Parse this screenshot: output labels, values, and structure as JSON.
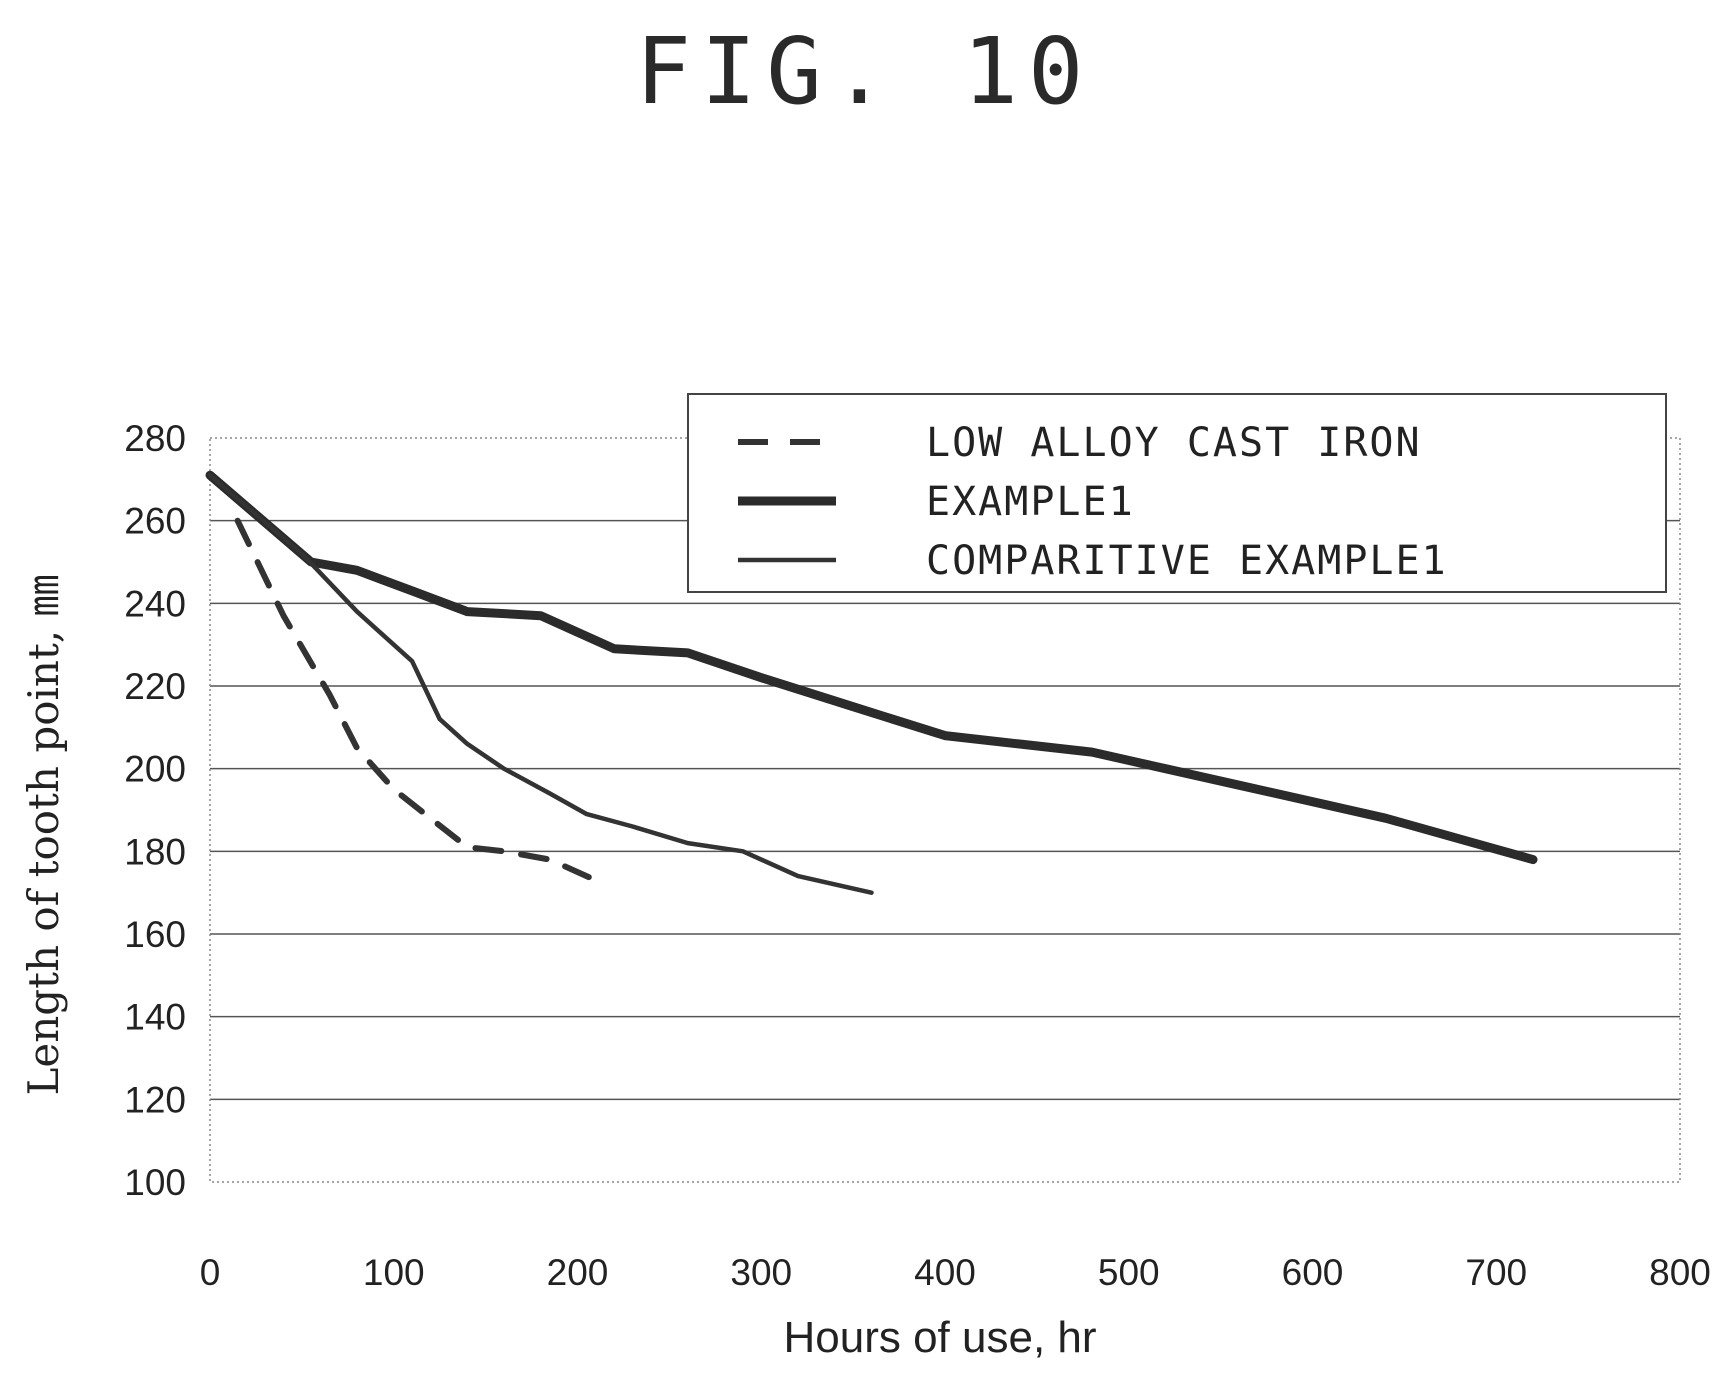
{
  "figure_title": "FIG. 10",
  "chart_data": {
    "type": "line",
    "xlabel": "Hours of use, hr",
    "ylabel": "Length of tooth point, ㎜",
    "xlim": [
      0,
      800
    ],
    "ylim": [
      100,
      280
    ],
    "xticks": [
      0,
      100,
      200,
      300,
      400,
      500,
      600,
      700,
      800
    ],
    "yticks": [
      100,
      120,
      140,
      160,
      180,
      200,
      220,
      240,
      260,
      280
    ],
    "grid": "horizontal",
    "legend_position": "top-right",
    "series": [
      {
        "name": "LOW ALLOY CAST IRON",
        "style": "dashed",
        "color": "#333333",
        "x": [
          15,
          40,
          65,
          80,
          100,
          120,
          140,
          160,
          185,
          210
        ],
        "y": [
          260,
          237,
          218,
          205,
          195,
          188,
          181,
          180,
          178,
          173
        ]
      },
      {
        "name": "EXAMPLE1",
        "style": "thick",
        "color": "#2b2b2b",
        "x": [
          0,
          55,
          80,
          110,
          140,
          180,
          220,
          260,
          300,
          350,
          400,
          440,
          480,
          520,
          560,
          600,
          640,
          680,
          720
        ],
        "y": [
          271,
          250,
          248,
          243,
          238,
          237,
          229,
          228,
          222,
          215,
          208,
          206,
          204,
          200,
          196,
          192,
          188,
          183,
          178
        ]
      },
      {
        "name": "COMPARITIVE EXAMPLE1",
        "style": "thin",
        "color": "#333333",
        "x": [
          0,
          50,
          80,
          110,
          125,
          140,
          160,
          185,
          205,
          230,
          260,
          290,
          320,
          360
        ],
        "y": [
          271,
          252,
          238,
          226,
          212,
          206,
          200,
          194,
          189,
          186,
          182,
          180,
          174,
          170
        ]
      }
    ]
  }
}
